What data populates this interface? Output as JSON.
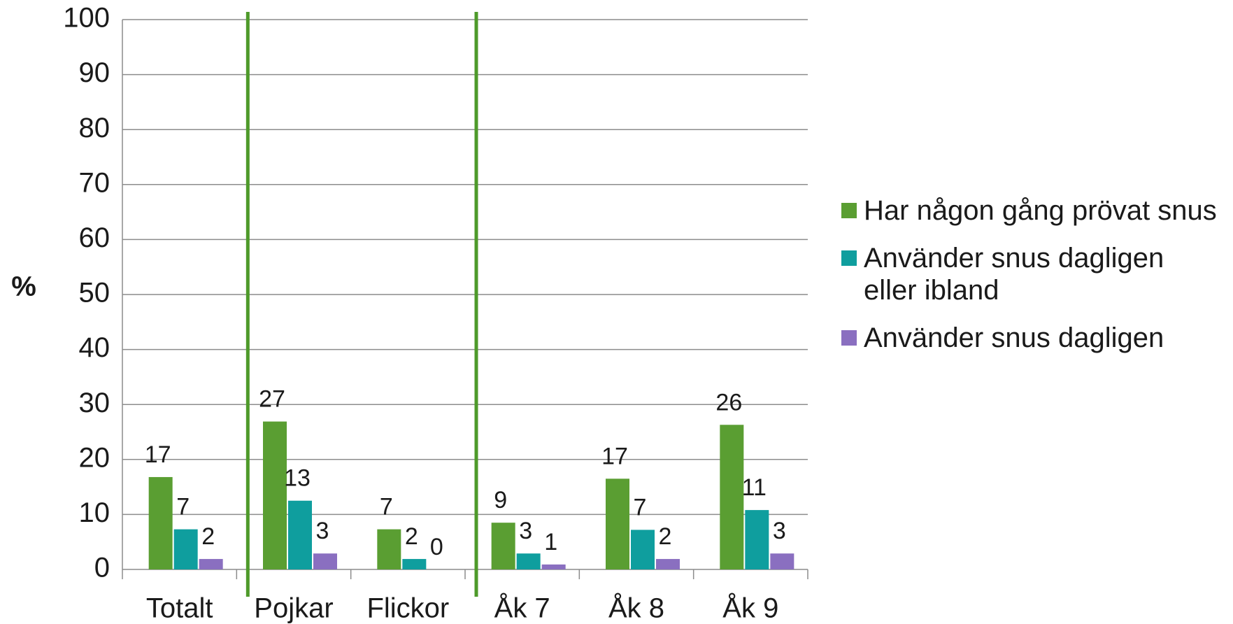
{
  "chart_data": {
    "type": "bar",
    "ylabel": "%",
    "categories": [
      "Totalt",
      "Pojkar",
      "Flickor",
      "Åk 7",
      "Åk 8",
      "Åk 9"
    ],
    "series": [
      {
        "name": "Har någon gång prövat snus",
        "color": "#5a9e32",
        "values": [
          16.8,
          26.9,
          7.3,
          8.5,
          16.5,
          26.3
        ],
        "value_labels": [
          "17",
          "27",
          "7",
          "9",
          "17",
          "26"
        ]
      },
      {
        "name": "Använder snus dagligen eller ibland",
        "color": "#0f9e9e",
        "values": [
          7.3,
          12.5,
          1.9,
          2.9,
          7.2,
          10.8
        ],
        "value_labels": [
          "7",
          "13",
          "2",
          "3",
          "7",
          "11"
        ]
      },
      {
        "name": "Använder snus dagligen",
        "color": "#8a6fc0",
        "values": [
          1.9,
          2.9,
          0,
          0.9,
          1.9,
          2.9
        ],
        "value_labels": [
          "2",
          "3",
          "0",
          "1",
          "2",
          "3"
        ]
      }
    ],
    "ylim": [
      0,
      100
    ],
    "yticks": [
      0,
      10,
      20,
      30,
      40,
      50,
      60,
      70,
      80,
      90,
      100
    ],
    "grid": true,
    "legend": "right"
  }
}
